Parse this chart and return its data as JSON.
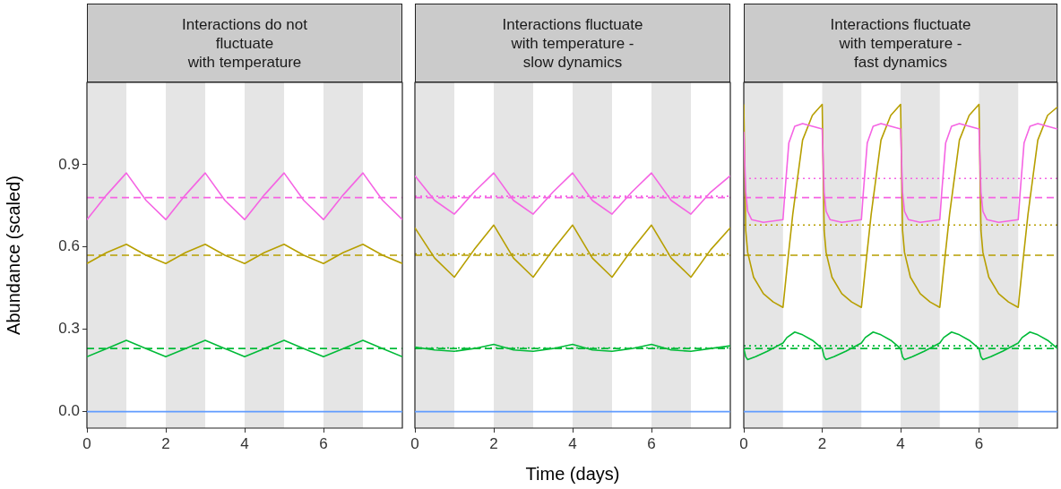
{
  "chart_data": [
    {
      "type": "line",
      "title": "Interactions do not\nfluctuate\nwith temperature",
      "ylabel": "Abundance (scaled)",
      "xlim": [
        0,
        8
      ],
      "xticks": [
        0,
        2,
        4,
        6
      ],
      "ylim": [
        -0.06,
        1.2
      ],
      "yticks": [
        {
          "value": 0,
          "label": "0.0"
        },
        0.3,
        0.6,
        0.9
      ],
      "grid": false,
      "legend": false,
      "series": [
        {
          "color": "#f564e3",
          "x": [
            0,
            0.5,
            1,
            1.5,
            2,
            2.5,
            3,
            3.5,
            4,
            4.5,
            5,
            5.5,
            6,
            6.5,
            7,
            7.5,
            8
          ],
          "values": [
            0.7,
            0.79,
            0.87,
            0.77,
            0.7,
            0.79,
            0.87,
            0.77,
            0.7,
            0.79,
            0.87,
            0.77,
            0.7,
            0.79,
            0.87,
            0.77,
            0.7
          ]
        },
        {
          "color": "#b79f00",
          "x": [
            0,
            0.5,
            1,
            1.5,
            2,
            2.5,
            3,
            3.5,
            4,
            4.5,
            5,
            5.5,
            6,
            6.5,
            7,
            7.5,
            8
          ],
          "values": [
            0.54,
            0.58,
            0.61,
            0.57,
            0.54,
            0.58,
            0.61,
            0.57,
            0.54,
            0.58,
            0.61,
            0.57,
            0.54,
            0.58,
            0.61,
            0.57,
            0.54
          ]
        },
        {
          "color": "#00ba38",
          "x": [
            0,
            0.5,
            1,
            1.5,
            2,
            2.5,
            3,
            3.5,
            4,
            4.5,
            5,
            5.5,
            6,
            6.5,
            7,
            7.5,
            8
          ],
          "values": [
            0.2,
            0.23,
            0.26,
            0.23,
            0.2,
            0.23,
            0.26,
            0.23,
            0.2,
            0.23,
            0.26,
            0.23,
            0.2,
            0.23,
            0.26,
            0.23,
            0.2
          ]
        },
        {
          "color": "#619cff",
          "x": [
            0,
            8
          ],
          "values": [
            0,
            0
          ]
        }
      ],
      "bands": [
        {
          "axis": "x",
          "from": 0,
          "to": 1,
          "color": "#e5e5e5"
        },
        {
          "axis": "x",
          "from": 2,
          "to": 3,
          "color": "#e5e5e5"
        },
        {
          "axis": "x",
          "from": 4,
          "to": 5,
          "color": "#e5e5e5"
        },
        {
          "axis": "x",
          "from": 6,
          "to": 7,
          "color": "#e5e5e5"
        }
      ],
      "ref_lines": [
        {
          "axis": "y",
          "value": 0.78,
          "color": "#f564e3",
          "line_style": "dashed"
        },
        {
          "axis": "y",
          "value": 0.57,
          "color": "#b79f00",
          "line_style": "dashed"
        },
        {
          "axis": "y",
          "value": 0.23,
          "color": "#00ba38",
          "line_style": "dashed"
        }
      ]
    },
    {
      "type": "line",
      "title": "Interactions fluctuate\nwith temperature -\nslow dynamics",
      "xlabel": "Time (days)",
      "xlim": [
        0,
        8
      ],
      "xticks": [
        0,
        2,
        4,
        6
      ],
      "ylim": [
        -0.06,
        1.2
      ],
      "tick_labels": "x",
      "grid": false,
      "legend": false,
      "series": [
        {
          "color": "#f564e3",
          "x": [
            0,
            0.5,
            1,
            1.5,
            2,
            2.5,
            3,
            3.5,
            4,
            4.5,
            5,
            5.5,
            6,
            6.5,
            7,
            7.5,
            8
          ],
          "values": [
            0.86,
            0.77,
            0.72,
            0.8,
            0.87,
            0.77,
            0.72,
            0.8,
            0.87,
            0.77,
            0.72,
            0.8,
            0.87,
            0.77,
            0.72,
            0.8,
            0.86
          ]
        },
        {
          "color": "#b79f00",
          "x": [
            0,
            0.5,
            1,
            1.5,
            2,
            2.5,
            3,
            3.5,
            4,
            4.5,
            5,
            5.5,
            6,
            6.5,
            7,
            7.5,
            8
          ],
          "values": [
            0.67,
            0.56,
            0.49,
            0.59,
            0.68,
            0.56,
            0.49,
            0.59,
            0.68,
            0.56,
            0.49,
            0.59,
            0.68,
            0.56,
            0.49,
            0.59,
            0.67
          ]
        },
        {
          "color": "#00ba38",
          "x": [
            0,
            0.5,
            1,
            1.5,
            2,
            2.5,
            3,
            3.5,
            4,
            4.5,
            5,
            5.5,
            6,
            6.5,
            7,
            7.5,
            8
          ],
          "values": [
            0.235,
            0.225,
            0.22,
            0.23,
            0.245,
            0.225,
            0.22,
            0.23,
            0.245,
            0.225,
            0.22,
            0.23,
            0.245,
            0.225,
            0.22,
            0.23,
            0.24
          ]
        },
        {
          "color": "#619cff",
          "x": [
            0,
            8
          ],
          "values": [
            0,
            0
          ]
        }
      ],
      "bands": [
        {
          "axis": "x",
          "from": 0,
          "to": 1,
          "color": "#e5e5e5"
        },
        {
          "axis": "x",
          "from": 2,
          "to": 3,
          "color": "#e5e5e5"
        },
        {
          "axis": "x",
          "from": 4,
          "to": 5,
          "color": "#e5e5e5"
        },
        {
          "axis": "x",
          "from": 6,
          "to": 7,
          "color": "#e5e5e5"
        }
      ],
      "ref_lines": [
        {
          "axis": "y",
          "value": 0.78,
          "color": "#f564e3",
          "line_style": "dashed"
        },
        {
          "axis": "y",
          "value": 0.57,
          "color": "#b79f00",
          "line_style": "dashed"
        },
        {
          "axis": "y",
          "value": 0.23,
          "color": "#00ba38",
          "line_style": "dashed"
        },
        {
          "axis": "y",
          "value": 0.785,
          "color": "#f564e3",
          "line_style": "dotted"
        },
        {
          "axis": "y",
          "value": 0.575,
          "color": "#b79f00",
          "line_style": "dotted"
        },
        {
          "axis": "y",
          "value": 0.232,
          "color": "#00ba38",
          "line_style": "dotted"
        }
      ]
    },
    {
      "type": "line",
      "title": "Interactions fluctuate\nwith temperature -\nfast dynamics",
      "xlim": [
        0,
        8
      ],
      "xticks": [
        0,
        2,
        4,
        6
      ],
      "ylim": [
        -0.06,
        1.2
      ],
      "tick_labels": "x",
      "grid": false,
      "legend": false,
      "series": [
        {
          "color": "#f564e3",
          "x": [
            0,
            0.05,
            0.1,
            0.2,
            0.5,
            1,
            1.05,
            1.15,
            1.3,
            1.5,
            1.75,
            2,
            2.05,
            2.1,
            2.2,
            2.5,
            3,
            3.05,
            3.15,
            3.3,
            3.5,
            3.75,
            4,
            4.05,
            4.1,
            4.2,
            4.5,
            5,
            5.05,
            5.15,
            5.3,
            5.5,
            5.75,
            6,
            6.05,
            6.1,
            6.2,
            6.5,
            7,
            7.05,
            7.15,
            7.3,
            7.5,
            7.75,
            8
          ],
          "values": [
            1.02,
            0.8,
            0.73,
            0.7,
            0.69,
            0.7,
            0.8,
            0.98,
            1.04,
            1.05,
            1.04,
            1.03,
            0.8,
            0.73,
            0.7,
            0.69,
            0.7,
            0.8,
            0.98,
            1.04,
            1.05,
            1.04,
            1.03,
            0.8,
            0.73,
            0.7,
            0.69,
            0.7,
            0.8,
            0.98,
            1.04,
            1.05,
            1.04,
            1.03,
            0.8,
            0.73,
            0.7,
            0.69,
            0.7,
            0.8,
            0.98,
            1.04,
            1.05,
            1.04,
            1.03
          ]
        },
        {
          "color": "#b79f00",
          "x": [
            0,
            0.05,
            0.1,
            0.25,
            0.5,
            0.75,
            1,
            1.1,
            1.25,
            1.5,
            1.75,
            2,
            2.05,
            2.1,
            2.25,
            2.5,
            2.75,
            3,
            3.1,
            3.25,
            3.5,
            3.75,
            4,
            4.05,
            4.1,
            4.25,
            4.5,
            4.75,
            5,
            5.1,
            5.25,
            5.5,
            5.75,
            6,
            6.05,
            6.1,
            6.25,
            6.5,
            6.75,
            7,
            7.1,
            7.25,
            7.5,
            7.75,
            8
          ],
          "values": [
            1.12,
            0.66,
            0.58,
            0.49,
            0.43,
            0.4,
            0.38,
            0.52,
            0.72,
            0.99,
            1.08,
            1.12,
            0.66,
            0.58,
            0.49,
            0.43,
            0.4,
            0.38,
            0.52,
            0.72,
            0.99,
            1.08,
            1.12,
            0.66,
            0.58,
            0.49,
            0.43,
            0.4,
            0.38,
            0.52,
            0.72,
            0.99,
            1.08,
            1.12,
            0.66,
            0.58,
            0.49,
            0.43,
            0.4,
            0.38,
            0.52,
            0.72,
            0.99,
            1.08,
            1.11
          ]
        },
        {
          "color": "#00ba38",
          "x": [
            0,
            0.05,
            0.1,
            0.3,
            0.6,
            1,
            1.1,
            1.3,
            1.5,
            1.75,
            2,
            2.05,
            2.1,
            2.3,
            2.6,
            3,
            3.1,
            3.3,
            3.5,
            3.75,
            4,
            4.05,
            4.1,
            4.3,
            4.6,
            5,
            5.1,
            5.3,
            5.5,
            5.75,
            6,
            6.05,
            6.1,
            6.3,
            6.6,
            7,
            7.1,
            7.3,
            7.5,
            7.75,
            8
          ],
          "values": [
            0.23,
            0.2,
            0.19,
            0.2,
            0.22,
            0.25,
            0.27,
            0.29,
            0.28,
            0.26,
            0.23,
            0.2,
            0.19,
            0.2,
            0.22,
            0.25,
            0.27,
            0.29,
            0.28,
            0.26,
            0.23,
            0.2,
            0.19,
            0.2,
            0.22,
            0.25,
            0.27,
            0.29,
            0.28,
            0.26,
            0.23,
            0.2,
            0.19,
            0.2,
            0.22,
            0.25,
            0.27,
            0.29,
            0.28,
            0.26,
            0.23
          ]
        },
        {
          "color": "#619cff",
          "x": [
            0,
            8
          ],
          "values": [
            0,
            0
          ]
        }
      ],
      "bands": [
        {
          "axis": "x",
          "from": 0,
          "to": 1,
          "color": "#e5e5e5"
        },
        {
          "axis": "x",
          "from": 2,
          "to": 3,
          "color": "#e5e5e5"
        },
        {
          "axis": "x",
          "from": 4,
          "to": 5,
          "color": "#e5e5e5"
        },
        {
          "axis": "x",
          "from": 6,
          "to": 7,
          "color": "#e5e5e5"
        }
      ],
      "ref_lines": [
        {
          "axis": "y",
          "value": 0.78,
          "color": "#f564e3",
          "line_style": "dashed"
        },
        {
          "axis": "y",
          "value": 0.57,
          "color": "#b79f00",
          "line_style": "dashed"
        },
        {
          "axis": "y",
          "value": 0.23,
          "color": "#00ba38",
          "line_style": "dashed"
        },
        {
          "axis": "y",
          "value": 0.85,
          "color": "#f564e3",
          "line_style": "dotted"
        },
        {
          "axis": "y",
          "value": 0.68,
          "color": "#b79f00",
          "line_style": "dotted"
        },
        {
          "axis": "y",
          "value": 0.24,
          "color": "#00ba38",
          "line_style": "dotted"
        }
      ]
    }
  ]
}
